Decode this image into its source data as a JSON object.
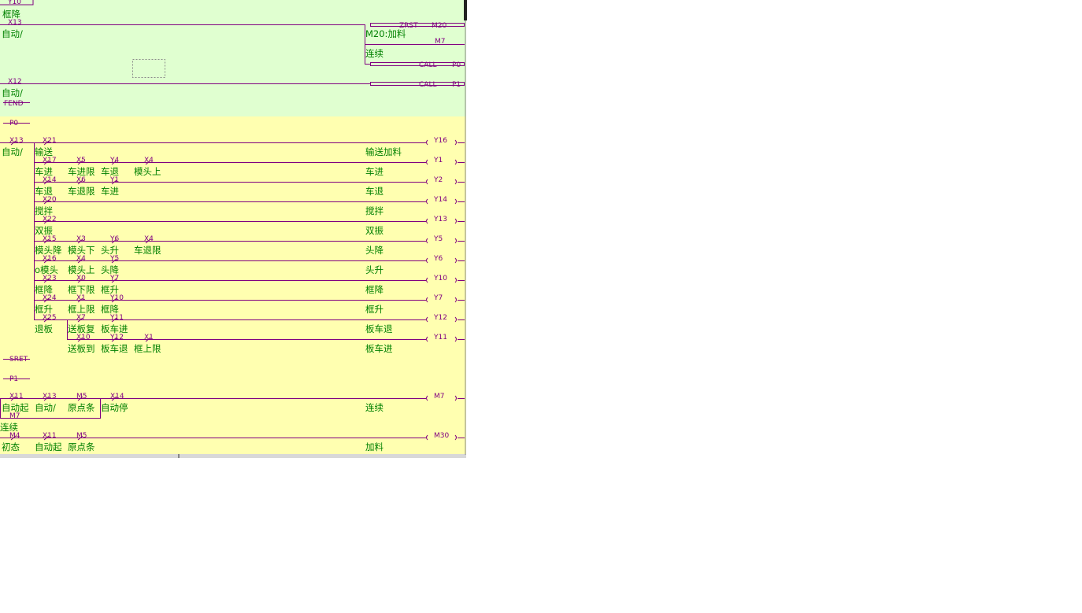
{
  "top": {
    "y10": "Y10",
    "fall": "框降",
    "x13": "X13",
    "auto1": "自动/",
    "zrst": "ZRST",
    "m20": "M20",
    "m20c": "M20:加料",
    "m7": "M7",
    "cont": "连续",
    "call0": "CALL",
    "p0": "P0",
    "x12": "X12",
    "auto2": "自动/",
    "call1": "CALL",
    "p1": "P1",
    "fend": "FEND"
  },
  "sections": {
    "p0": "P0",
    "sret": "SRET",
    "p1": "P1"
  },
  "rungs": [
    {
      "contacts": [
        {
          "device": "X13",
          "comment": "自动/"
        },
        {
          "device": "X21",
          "comment": "输送"
        }
      ],
      "coil": {
        "device": "Y16",
        "comment": "输送加料"
      }
    },
    {
      "contacts": [
        {
          "device": "X17",
          "comment": "车进"
        },
        {
          "device": "X5",
          "comment": "车进限"
        },
        {
          "device": "Y4",
          "comment": "车退"
        },
        {
          "device": "X4",
          "comment": "模头上"
        }
      ],
      "coil": {
        "device": "Y1",
        "comment": "车进"
      }
    },
    {
      "contacts": [
        {
          "device": "X14",
          "comment": "车退"
        },
        {
          "device": "X6",
          "comment": "车退限"
        },
        {
          "device": "Y1",
          "comment": "车进"
        }
      ],
      "coil": {
        "device": "Y2",
        "comment": "车退"
      }
    },
    {
      "contacts": [
        {
          "device": "X20",
          "comment": "搅拌"
        }
      ],
      "coil": {
        "device": "Y14",
        "comment": "搅拌"
      }
    },
    {
      "contacts": [
        {
          "device": "X22",
          "comment": "双振"
        }
      ],
      "coil": {
        "device": "Y13",
        "comment": "双振"
      }
    },
    {
      "contacts": [
        {
          "device": "X15",
          "comment": "模头降"
        },
        {
          "device": "X3",
          "comment": "模头下"
        },
        {
          "device": "Y6",
          "comment": "头升"
        },
        {
          "device": "X4",
          "comment": "车退限"
        }
      ],
      "coil": {
        "device": "Y5",
        "comment": "头降"
      }
    },
    {
      "contacts": [
        {
          "device": "X16",
          "comment": "o模头"
        },
        {
          "device": "X4",
          "comment": "模头上"
        },
        {
          "device": "Y5",
          "comment": "头降"
        }
      ],
      "coil": {
        "device": "Y6",
        "comment": "头升"
      }
    },
    {
      "contacts": [
        {
          "device": "X23",
          "comment": "框降"
        },
        {
          "device": "X0",
          "comment": "框下限"
        },
        {
          "device": "Y7",
          "comment": "框升"
        }
      ],
      "coil": {
        "device": "Y10",
        "comment": "框降"
      }
    },
    {
      "contacts": [
        {
          "device": "X24",
          "comment": "框升"
        },
        {
          "device": "X1",
          "comment": "框上限"
        },
        {
          "device": "Y10",
          "comment": "框降"
        }
      ],
      "coil": {
        "device": "Y7",
        "comment": "框升"
      }
    },
    {
      "contacts": [
        {
          "device": "X25",
          "comment": "退板"
        },
        {
          "device": "X7",
          "comment": "送板复"
        },
        {
          "device": "Y11",
          "comment": "板车进"
        }
      ],
      "coil": {
        "device": "Y12",
        "comment": "板车退"
      }
    },
    {
      "contacts": [
        {
          "device": "X10",
          "comment": "送板到"
        },
        {
          "device": "Y12",
          "comment": "板车退"
        },
        {
          "device": "X1",
          "comment": "框上限"
        }
      ],
      "coil": {
        "device": "Y11",
        "comment": "板车进"
      }
    },
    {
      "contacts": [
        {
          "device": "X11",
          "comment": "自动起"
        },
        {
          "device": "X13",
          "comment": "自动/"
        },
        {
          "device": "M5",
          "comment": "原点条"
        },
        {
          "device": "X14",
          "comment": "自动停"
        }
      ],
      "coil": {
        "device": "M7",
        "comment": "连续"
      },
      "branch": {
        "device": "M7",
        "comment": "连续"
      }
    },
    {
      "contacts": [
        {
          "device": "M4",
          "comment": "初态"
        },
        {
          "device": "X11",
          "comment": "自动起"
        },
        {
          "device": "M5",
          "comment": "原点条"
        }
      ],
      "coil": {
        "device": "M30",
        "comment": "加料"
      }
    }
  ]
}
